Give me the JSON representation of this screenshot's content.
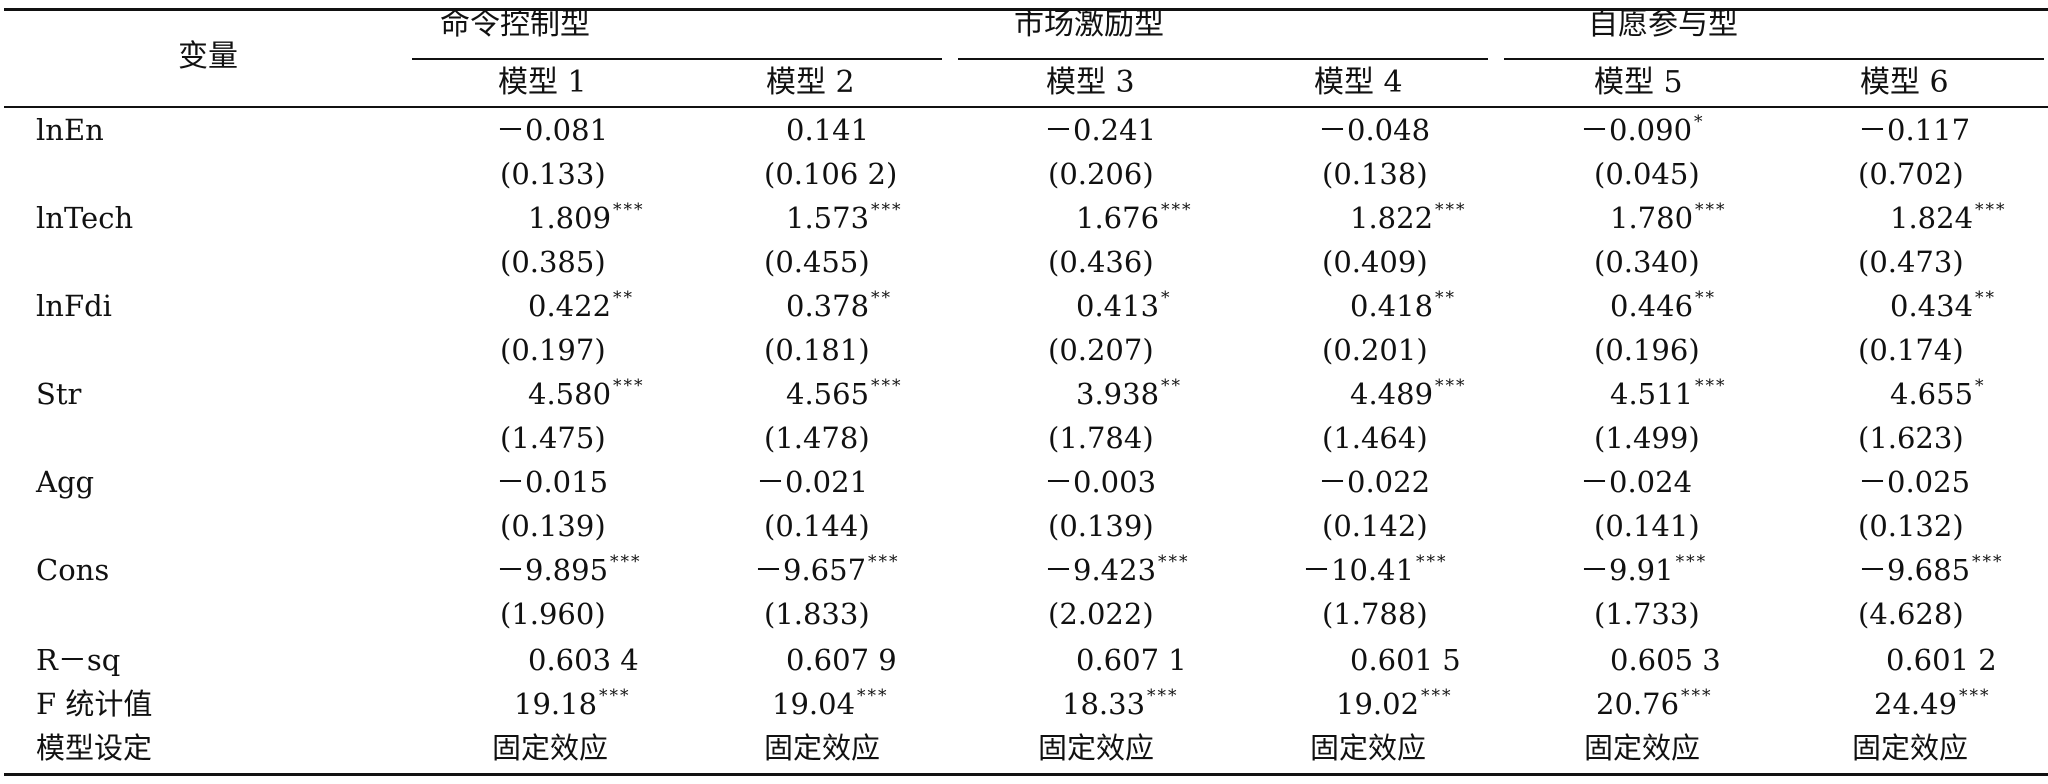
{
  "table": {
    "corner": "变量",
    "groups": [
      "命令控制型",
      "市场激励型",
      "自愿参与型"
    ],
    "models": [
      "模型 1",
      "模型 2",
      "模型 3",
      "模型 4",
      "模型 5",
      "模型 6"
    ],
    "rows": [
      {
        "variable": "lnEn",
        "coef": [
          {
            "v": "－0.081",
            "s": ""
          },
          {
            "v": "0.141",
            "s": ""
          },
          {
            "v": "－0.241",
            "s": ""
          },
          {
            "v": "－0.048",
            "s": ""
          },
          {
            "v": "－0.090",
            "s": "*"
          },
          {
            "v": "－0.117",
            "s": ""
          }
        ],
        "se": [
          "(0.133)",
          "(0.106 2)",
          "(0.206)",
          "(0.138)",
          "(0.045)",
          "(0.702)"
        ]
      },
      {
        "variable": "lnTech",
        "coef": [
          {
            "v": "1.809",
            "s": "***"
          },
          {
            "v": "1.573",
            "s": "***"
          },
          {
            "v": "1.676",
            "s": "***"
          },
          {
            "v": "1.822",
            "s": "***"
          },
          {
            "v": "1.780",
            "s": "***"
          },
          {
            "v": "1.824",
            "s": "***"
          }
        ],
        "se": [
          "(0.385)",
          "(0.455)",
          "(0.436)",
          "(0.409)",
          "(0.340)",
          "(0.473)"
        ]
      },
      {
        "variable": "lnFdi",
        "coef": [
          {
            "v": "0.422",
            "s": "**"
          },
          {
            "v": "0.378",
            "s": "**"
          },
          {
            "v": "0.413",
            "s": "*"
          },
          {
            "v": "0.418",
            "s": "**"
          },
          {
            "v": "0.446",
            "s": "**"
          },
          {
            "v": "0.434",
            "s": "**"
          }
        ],
        "se": [
          "(0.197)",
          "(0.181)",
          "(0.207)",
          "(0.201)",
          "(0.196)",
          "(0.174)"
        ]
      },
      {
        "variable": "Str",
        "coef": [
          {
            "v": "4.580",
            "s": "***"
          },
          {
            "v": "4.565",
            "s": "***"
          },
          {
            "v": "3.938",
            "s": "**"
          },
          {
            "v": "4.489",
            "s": "***"
          },
          {
            "v": "4.511",
            "s": "***"
          },
          {
            "v": "4.655",
            "s": "*"
          }
        ],
        "se": [
          "(1.475)",
          "(1.478)",
          "(1.784)",
          "(1.464)",
          "(1.499)",
          "(1.623)"
        ]
      },
      {
        "variable": "Agg",
        "coef": [
          {
            "v": "－0.015",
            "s": ""
          },
          {
            "v": "－0.021",
            "s": ""
          },
          {
            "v": "－0.003",
            "s": ""
          },
          {
            "v": "－0.022",
            "s": ""
          },
          {
            "v": "－0.024",
            "s": ""
          },
          {
            "v": "－0.025",
            "s": ""
          }
        ],
        "se": [
          "(0.139)",
          "(0.144)",
          "(0.139)",
          "(0.142)",
          "(0.141)",
          "(0.132)"
        ]
      },
      {
        "variable": "Cons",
        "coef": [
          {
            "v": "－9.895",
            "s": "***"
          },
          {
            "v": "－9.657",
            "s": "***"
          },
          {
            "v": "－9.423",
            "s": "***"
          },
          {
            "v": "－10.41",
            "s": "***"
          },
          {
            "v": "－9.91",
            "s": "***"
          },
          {
            "v": "－9.685",
            "s": "***"
          }
        ],
        "se": [
          "(1.960)",
          "(1.833)",
          "(2.022)",
          "(1.788)",
          "(1.733)",
          "(4.628)"
        ]
      }
    ],
    "rsq": {
      "label": "R－sq",
      "values": [
        "0.603 4",
        "0.607 9",
        "0.607 1",
        "0.601 5",
        "0.605 3",
        "0.601 2"
      ]
    },
    "fstat": {
      "label": "F 统计值",
      "values": [
        {
          "v": "19.18",
          "s": "***"
        },
        {
          "v": "19.04",
          "s": "***"
        },
        {
          "v": "18.33",
          "s": "***"
        },
        {
          "v": "19.02",
          "s": "***"
        },
        {
          "v": "20.76",
          "s": "***"
        },
        {
          "v": "24.49",
          "s": "***"
        }
      ]
    },
    "spec": {
      "label": "模型设定",
      "values": [
        "固定效应",
        "固定效应",
        "固定效应",
        "固定效应",
        "固定效应",
        "固定效应"
      ]
    }
  }
}
